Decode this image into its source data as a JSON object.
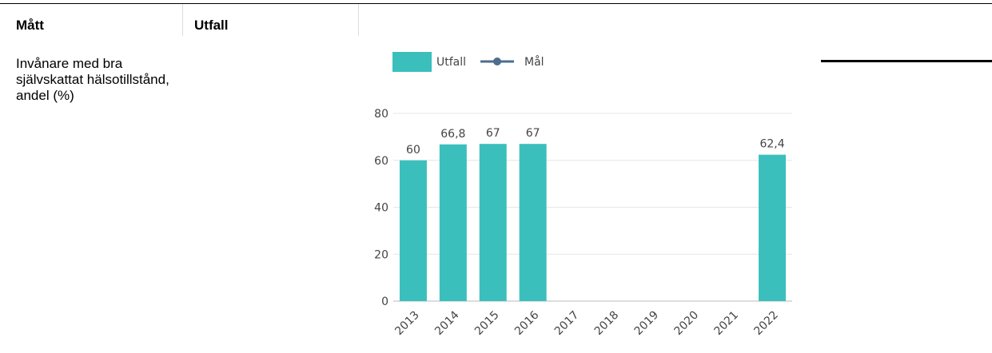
{
  "table": {
    "header": [
      "Mått",
      "Utfall"
    ],
    "rows": [
      [
        "Invånare med bra självskattat hälsotillstånd, andel (%)"
      ]
    ]
  },
  "chart_data": {
    "type": "bar",
    "categories": [
      "2013",
      "2014",
      "2015",
      "2016",
      "2017",
      "2018",
      "2019",
      "2020",
      "2021",
      "2022"
    ],
    "series": [
      {
        "name": "Utfall",
        "color": "#3bbfbd",
        "values": [
          60,
          66.8,
          67,
          67,
          null,
          null,
          null,
          null,
          null,
          62.4
        ],
        "value_labels": [
          "60",
          "66,8",
          "67",
          "67",
          null,
          null,
          null,
          null,
          null,
          "62,4"
        ]
      },
      {
        "name": "Mål",
        "color": "#4d6d8e",
        "values": [
          null,
          null,
          null,
          null,
          null,
          null,
          null,
          null,
          null,
          null
        ]
      }
    ],
    "ylim": [
      0,
      80
    ],
    "yticks": [
      0,
      20,
      40,
      60,
      80
    ],
    "grid": true
  }
}
